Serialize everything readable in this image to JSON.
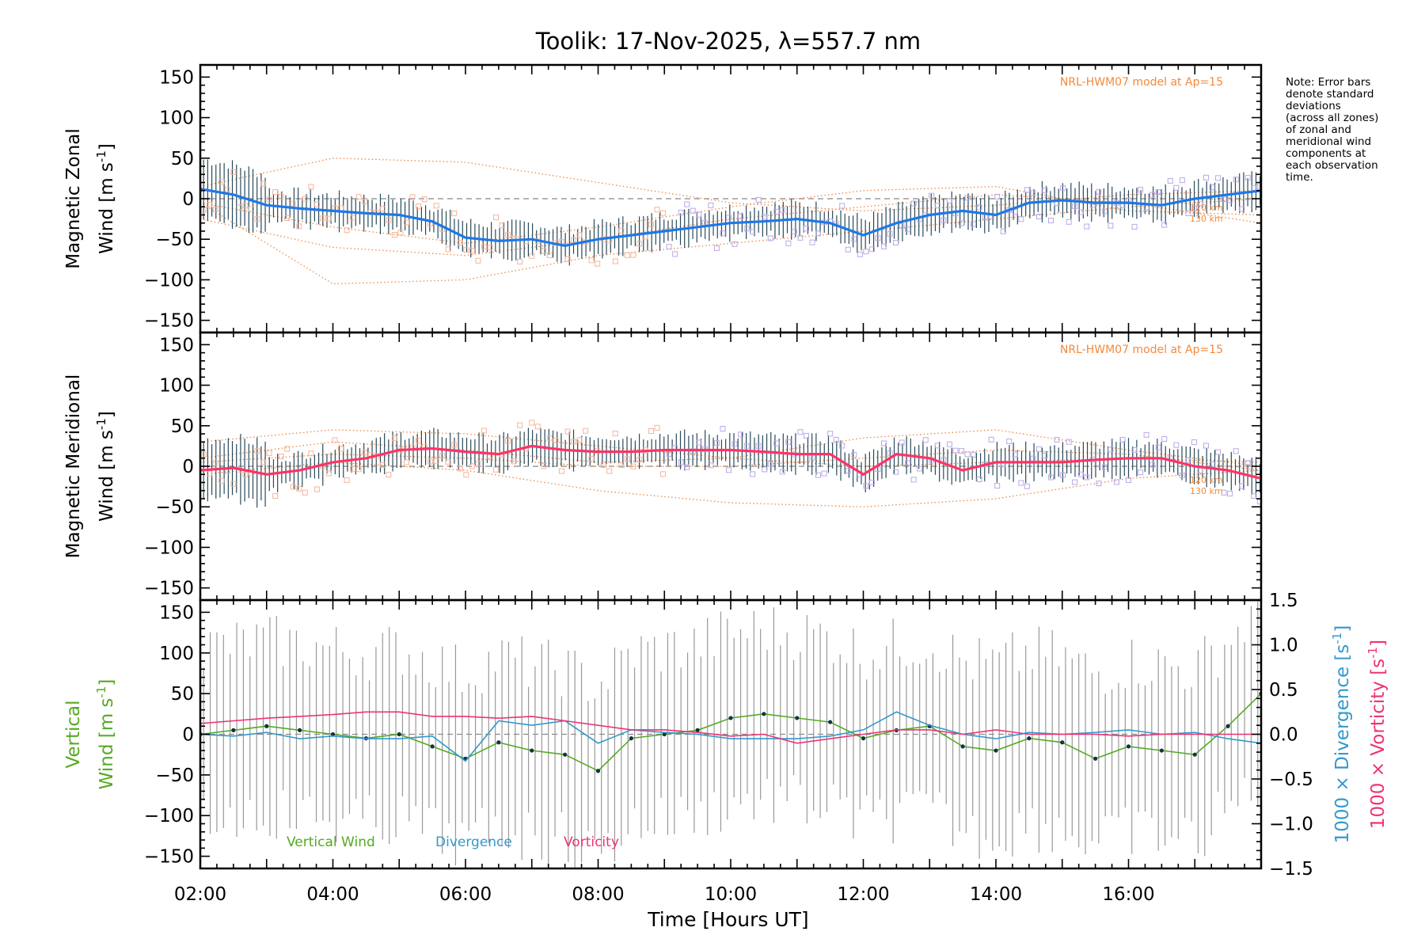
{
  "chart_data": {
    "type": "line",
    "title": "Toolik: 17-Nov-2025, λ=557.7 nm",
    "xlabel": "Time [Hours UT]",
    "xlim": [
      2.0,
      18.0
    ],
    "x_ticks": [
      "02:00",
      "04:00",
      "06:00",
      "08:00",
      "10:00",
      "12:00",
      "14:00",
      "16:00"
    ],
    "note": [
      "Note: Error bars",
      "denote standard",
      "deviations",
      "(across all zones)",
      "of zonal and",
      "meridional wind",
      "components at",
      "each observation",
      "time."
    ],
    "panels": [
      {
        "id": "zonal",
        "ylabel_line1": "Magnetic Zonal",
        "ylabel_line2": "Wind [m s",
        "ylabel_sup": "-1",
        "ylabel_close": "]",
        "ylim": [
          -165,
          165
        ],
        "y_ticks": [
          150,
          100,
          50,
          0,
          -50,
          -100,
          -150
        ],
        "model_label": "NRL-HWM07 model at Ap=15",
        "alt_labels": [
          "120 km",
          "130 km"
        ],
        "series_color": "#1e78e6",
        "x": [
          2.0,
          2.5,
          3.0,
          3.5,
          4.0,
          4.5,
          5.0,
          5.5,
          6.0,
          6.5,
          7.0,
          7.5,
          8.0,
          8.5,
          9.0,
          9.5,
          10.0,
          10.5,
          11.0,
          11.5,
          12.0,
          12.5,
          13.0,
          13.5,
          14.0,
          14.5,
          15.0,
          15.5,
          16.0,
          16.5,
          17.0,
          17.5,
          18.0
        ],
        "values": [
          12,
          5,
          -8,
          -12,
          -15,
          -18,
          -20,
          -28,
          -48,
          -52,
          -50,
          -58,
          -50,
          -45,
          -40,
          -35,
          -30,
          -28,
          -25,
          -30,
          -45,
          -30,
          -20,
          -15,
          -20,
          -5,
          -2,
          -5,
          -5,
          -8,
          0,
          5,
          10
        ],
        "model_series": [
          {
            "name": "model A",
            "x": [
              2,
              4,
              6,
              8,
              10,
              12,
              14,
              16,
              18
            ],
            "values": [
              15,
              50,
              45,
              20,
              -5,
              -15,
              -8,
              5,
              10
            ]
          },
          {
            "name": "model B",
            "x": [
              2,
              4,
              6,
              8,
              10,
              12,
              14,
              16,
              18
            ],
            "values": [
              -5,
              -105,
              -100,
              -70,
              -55,
              -40,
              -25,
              -10,
              0
            ]
          },
          {
            "name": "model C",
            "x": [
              2,
              4,
              6,
              8,
              10,
              12,
              14,
              16,
              18
            ],
            "values": [
              -5,
              -35,
              -55,
              -35,
              -10,
              10,
              15,
              -15,
              -20
            ]
          },
          {
            "name": "model D",
            "x": [
              2,
              4,
              6,
              8,
              10,
              12,
              14,
              16,
              18
            ],
            "values": [
              -25,
              -60,
              -70,
              -50,
              -25,
              -10,
              5,
              -5,
              -30
            ]
          }
        ]
      },
      {
        "id": "meridional",
        "ylabel_line1": "Magnetic Meridional",
        "ylabel_line2": "Wind [m s",
        "ylabel_sup": "-1",
        "ylabel_close": "]",
        "ylim": [
          -165,
          165
        ],
        "y_ticks": [
          150,
          100,
          50,
          0,
          -50,
          -100,
          -150
        ],
        "model_label": "NRL-HWM07 model at Ap=15",
        "alt_labels": [
          "120 km",
          "130 km"
        ],
        "series_color": "#ff3366",
        "x": [
          2.0,
          2.5,
          3.0,
          3.5,
          4.0,
          4.5,
          5.0,
          5.5,
          6.0,
          6.5,
          7.0,
          7.5,
          8.0,
          8.5,
          9.0,
          9.5,
          10.0,
          10.5,
          11.0,
          11.5,
          12.0,
          12.5,
          13.0,
          13.5,
          14.0,
          14.5,
          15.0,
          15.5,
          16.0,
          16.5,
          17.0,
          17.5,
          18.0
        ],
        "values": [
          -5,
          -2,
          -10,
          -5,
          5,
          10,
          20,
          22,
          18,
          15,
          25,
          20,
          18,
          18,
          20,
          20,
          20,
          18,
          15,
          15,
          -10,
          15,
          10,
          -5,
          5,
          5,
          5,
          8,
          10,
          10,
          0,
          -5,
          -15
        ],
        "model_series": [
          {
            "name": "model A",
            "x": [
              2,
              4,
              6,
              8,
              10,
              12,
              14,
              16,
              18
            ],
            "values": [
              30,
              45,
              40,
              25,
              10,
              0,
              5,
              10,
              5
            ]
          },
          {
            "name": "model B",
            "x": [
              2,
              4,
              6,
              8,
              10,
              12,
              14,
              16,
              18
            ],
            "values": [
              -10,
              5,
              -5,
              -30,
              -45,
              -50,
              -40,
              -15,
              -5
            ]
          },
          {
            "name": "model C",
            "x": [
              2,
              4,
              6,
              8,
              10,
              12,
              14,
              16,
              18
            ],
            "values": [
              10,
              30,
              20,
              5,
              10,
              35,
              45,
              20,
              0
            ]
          },
          {
            "name": "model D",
            "x": [
              2,
              4,
              6,
              8,
              10,
              12,
              14,
              16,
              18
            ],
            "values": [
              5,
              15,
              10,
              0,
              0,
              10,
              20,
              15,
              -5
            ]
          }
        ]
      },
      {
        "id": "vertical",
        "ylabel_line1": "Vertical",
        "ylabel_line2": "Wind [m s",
        "ylabel_sup": "-1",
        "ylabel_close": "]",
        "ylim": [
          -165,
          165
        ],
        "y_ticks": [
          150,
          100,
          50,
          0,
          -50,
          -100,
          -150
        ],
        "y2_ticks": [
          "1.5",
          "1.0",
          "0.5",
          "0.0",
          "−0.5",
          "−1.0",
          "−1.5"
        ],
        "y2_lim": [
          -1.5,
          1.5
        ],
        "y2_label_div": "1000 × Divergence [s",
        "y2_label_vort": "1000 × Vorticity [s",
        "y2_label_sup": "-1",
        "y2_label_close": "]",
        "legend": [
          "Vertical Wind",
          "Divergence",
          "Vorticity"
        ],
        "series": [
          {
            "name": "Vertical Wind",
            "color": "#55aa22",
            "x": [
              2.0,
              2.5,
              3.0,
              3.5,
              4.0,
              4.5,
              5.0,
              5.5,
              6.0,
              6.5,
              7.0,
              7.5,
              8.0,
              8.5,
              9.0,
              9.5,
              10.0,
              10.5,
              11.0,
              11.5,
              12.0,
              12.5,
              13.0,
              13.5,
              14.0,
              14.5,
              15.0,
              15.5,
              16.0,
              16.5,
              17.0,
              17.5,
              18.0
            ],
            "values": [
              0,
              5,
              10,
              5,
              0,
              -5,
              0,
              -15,
              -30,
              -10,
              -20,
              -25,
              -45,
              -5,
              0,
              5,
              20,
              25,
              20,
              15,
              -5,
              5,
              10,
              -15,
              -20,
              -5,
              -10,
              -30,
              -15,
              -20,
              -25,
              10,
              50
            ]
          },
          {
            "name": "Divergence",
            "color": "#3399cc",
            "x": [
              2.0,
              2.5,
              3.0,
              3.5,
              4.0,
              4.5,
              5.0,
              5.5,
              6.0,
              6.5,
              7.0,
              7.5,
              8.0,
              8.5,
              9.0,
              9.5,
              10.0,
              10.5,
              11.0,
              11.5,
              12.0,
              12.5,
              13.0,
              13.5,
              14.0,
              14.5,
              15.0,
              15.5,
              16.0,
              16.5,
              17.0,
              17.5,
              18.0
            ],
            "values": [
              0.0,
              -0.02,
              0.02,
              -0.05,
              -0.02,
              -0.05,
              -0.05,
              -0.02,
              -0.3,
              0.15,
              0.1,
              0.15,
              -0.1,
              0.05,
              0.02,
              0.0,
              -0.05,
              -0.05,
              -0.05,
              -0.02,
              0.05,
              0.25,
              0.1,
              0.0,
              -0.05,
              0.02,
              0.0,
              0.02,
              0.05,
              0.0,
              0.02,
              -0.05,
              -0.1
            ]
          },
          {
            "name": "Vorticity",
            "color": "#ee3377",
            "x": [
              2.0,
              2.5,
              3.0,
              3.5,
              4.0,
              4.5,
              5.0,
              5.5,
              6.0,
              6.5,
              7.0,
              7.5,
              8.0,
              8.5,
              9.0,
              9.5,
              10.0,
              10.5,
              11.0,
              11.5,
              12.0,
              12.5,
              13.0,
              13.5,
              14.0,
              14.5,
              15.0,
              15.5,
              16.0,
              16.5,
              17.0,
              17.5,
              18.0
            ],
            "values": [
              0.12,
              0.15,
              0.18,
              0.2,
              0.22,
              0.25,
              0.25,
              0.2,
              0.2,
              0.18,
              0.2,
              0.15,
              0.1,
              0.05,
              0.05,
              0.02,
              -0.02,
              0.0,
              -0.1,
              -0.05,
              0.0,
              0.05,
              0.05,
              0.0,
              0.05,
              0.0,
              0.0,
              0.0,
              -0.02,
              0.0,
              0.0,
              0.0,
              0.0
            ]
          }
        ]
      }
    ]
  }
}
